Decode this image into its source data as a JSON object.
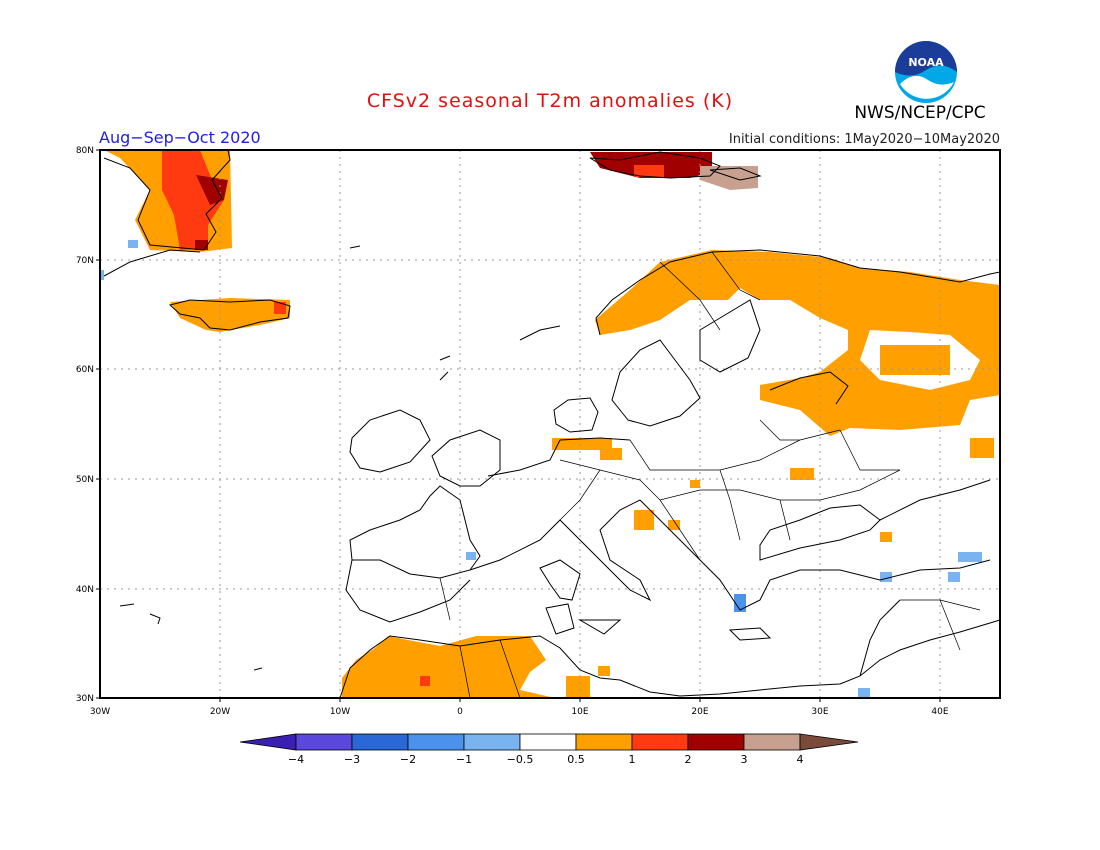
{
  "header": {
    "title": "CFSv2 seasonal T2m anomalies (K)",
    "period": "Aug−Sep−Oct 2020",
    "initial_conditions": "Initial conditions: 1May2020−10May2020",
    "organization": "NWS/NCEP/CPC",
    "logo_text": "NOAA"
  },
  "axes": {
    "lon_labels": [
      "30W",
      "20W",
      "10W",
      "0",
      "10E",
      "20E",
      "30E",
      "40E"
    ],
    "lat_labels": [
      "80N",
      "70N",
      "60N",
      "50N",
      "40N",
      "30N"
    ],
    "lon_range": [
      -30,
      45
    ],
    "lat_range": [
      30,
      80
    ],
    "grid": true
  },
  "colorbar": {
    "labels": [
      "−4",
      "−3",
      "−2",
      "−1",
      "−0.5",
      "0.5",
      "1",
      "2",
      "3",
      "4"
    ],
    "colors": [
      "#3a1fb0",
      "#5a48dc",
      "#2a68d8",
      "#4b92ec",
      "#7ab4f0",
      "#ffffff",
      "#ffa000",
      "#ff3a10",
      "#a00000",
      "#c8a090",
      "#7a4a3a"
    ]
  },
  "legend_colors": {
    "cold_05": "#7ab4f0",
    "cold_1": "#4b92ec",
    "warm_05": "#ffa000",
    "warm_1": "#ff3a10",
    "warm_2": "#a00000",
    "warm_3": "#c8a090"
  }
}
